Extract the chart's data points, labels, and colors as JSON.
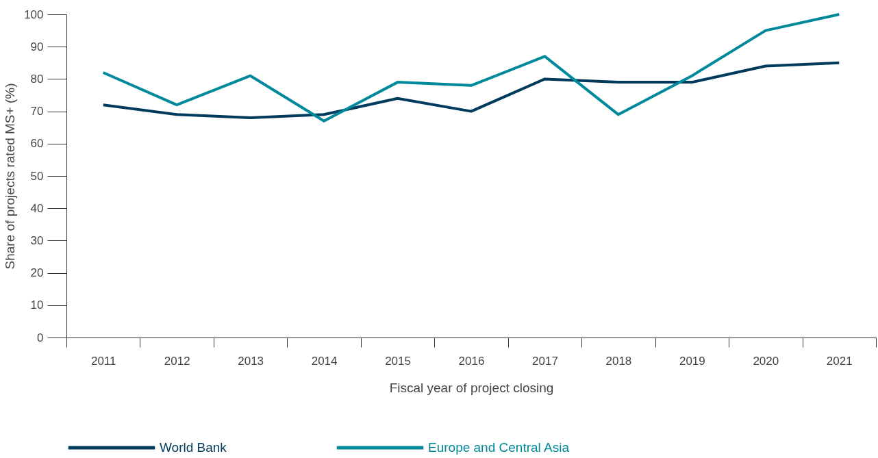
{
  "chart_data": {
    "type": "line",
    "xlabel": "Fiscal year of project closing",
    "ylabel": "Share of projects rated MS+ (%)",
    "categories": [
      "2011",
      "2012",
      "2013",
      "2014",
      "2015",
      "2016",
      "2017",
      "2018",
      "2019",
      "2020",
      "2021"
    ],
    "series": [
      {
        "name": "World Bank",
        "color": "#003a5d",
        "values": [
          72,
          69,
          68,
          69,
          74,
          70,
          80,
          79,
          79,
          84,
          85
        ]
      },
      {
        "name": "Europe and Central Asia",
        "color": "#00899a",
        "values": [
          82,
          72,
          81,
          67,
          79,
          78,
          87,
          69,
          81,
          95,
          100
        ]
      }
    ],
    "ylim": [
      0,
      100
    ],
    "yticks": [
      0,
      10,
      20,
      30,
      40,
      50,
      60,
      70,
      80,
      90,
      100
    ],
    "grid": false,
    "legend": "bottom",
    "marker": "none",
    "line_style": "solid"
  }
}
